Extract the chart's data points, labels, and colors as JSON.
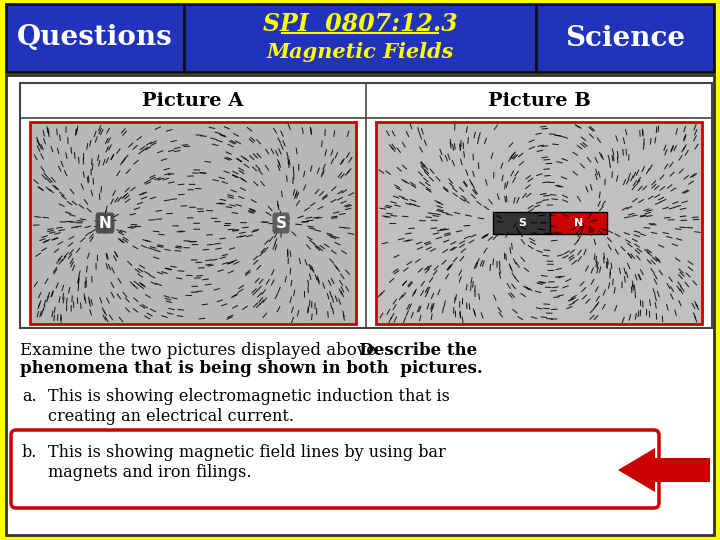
{
  "bg_color": "#FFFF00",
  "header_bg": "#2233BB",
  "header_text_color": "#FFFF00",
  "header_title_line1": "SPI  0807:12.3",
  "header_title_line2": "Magnetic Fields",
  "header_left": "Questions",
  "header_right": "Science",
  "body_bg": "#FFFFFF",
  "pic_label_A": "Picture A",
  "pic_label_B": "Picture B",
  "pic_border_color": "#CC0000",
  "answer_a": "This is showing electromagnetic induction that is\ncreating an electrical current.",
  "answer_b_line1": "This is showing magnetic field lines by using bar",
  "answer_b_line2": "magnets and iron filings.",
  "answer_b_box_color": "#CC0000",
  "arrow_color": "#CC0000"
}
